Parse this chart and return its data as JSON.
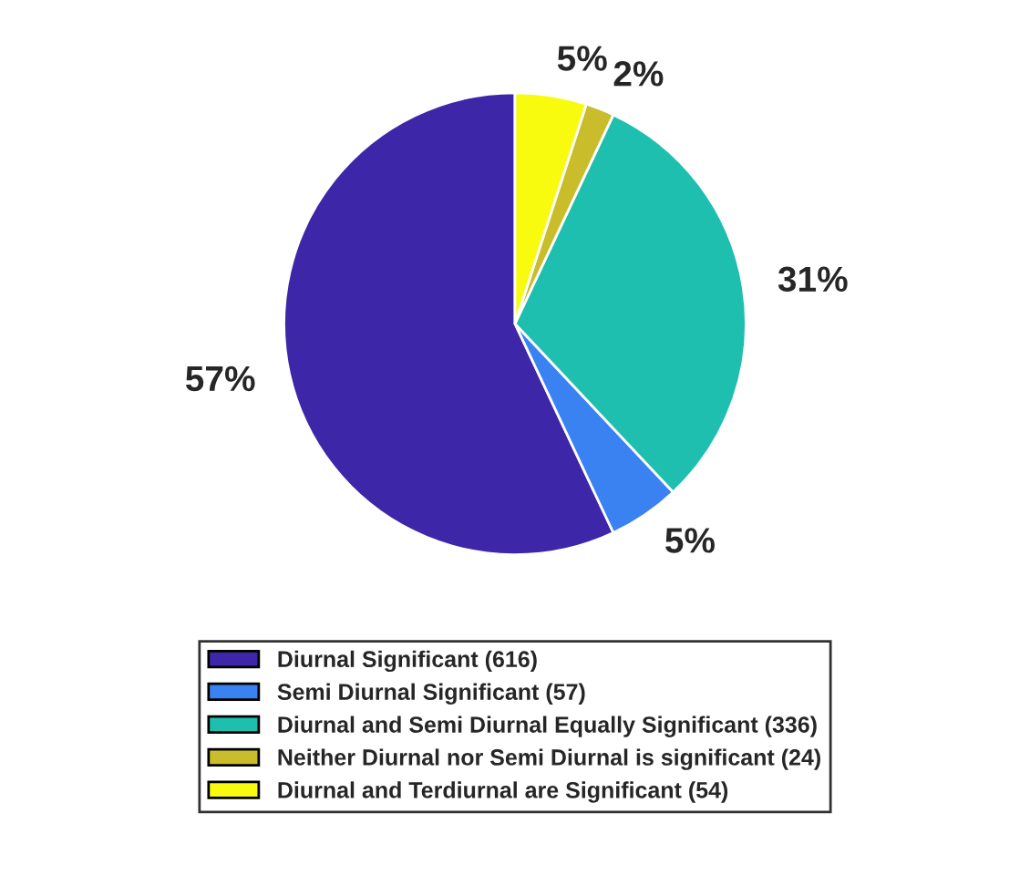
{
  "chart_data": {
    "type": "pie",
    "categories": [
      "Diurnal Significant (616)",
      "Semi Diurnal Significant (57)",
      "Diurnal and Semi Diurnal Equally Significant (336)",
      "Neither Diurnal nor Semi Diurnal is significant (24)",
      "Diurnal and Terdiurnal are Significant (54)"
    ],
    "values": [
      57,
      5,
      31,
      2,
      5
    ],
    "value_labels": [
      "57%",
      "5%",
      "31%",
      "2%",
      "5%"
    ],
    "colors": [
      "#3e26a8",
      "#3a82f2",
      "#1fbfb0",
      "#c9bd2b",
      "#f9fb0e"
    ],
    "legend": "bottom"
  }
}
